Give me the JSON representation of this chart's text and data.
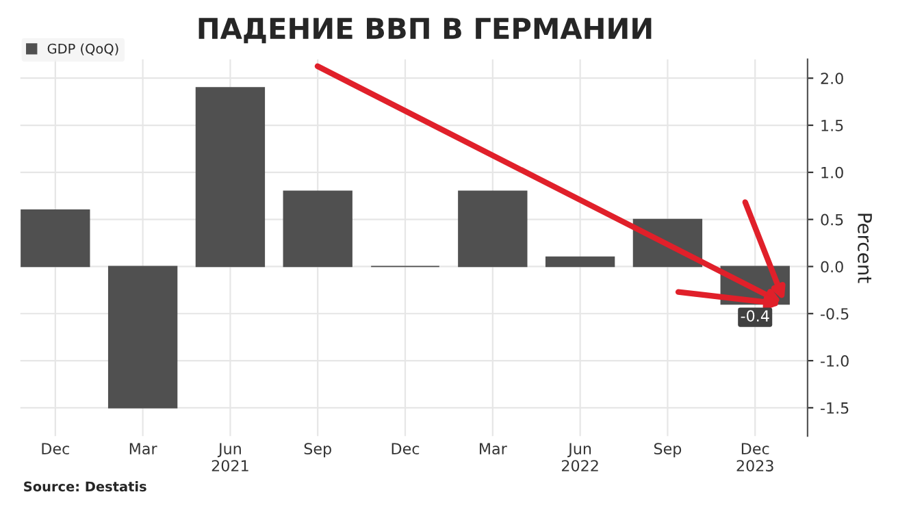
{
  "chart_data": {
    "type": "bar",
    "title": "ПАДЕНИЕ ВВП В ГЕРМАНИИ",
    "categories": [
      "Dec",
      "Mar",
      "Jun\n2021",
      "Sep",
      "Dec",
      "Mar",
      "Jun\n2022",
      "Sep",
      "Dec\n2023"
    ],
    "series": [
      {
        "name": "GDP (QoQ)",
        "color": "#505050",
        "values": [
          0.6,
          -1.5,
          1.9,
          0.8,
          0.0,
          0.8,
          0.1,
          0.5,
          -0.4
        ],
        "value_labels": [
          null,
          null,
          null,
          null,
          null,
          null,
          null,
          null,
          "-0.4"
        ]
      }
    ],
    "ylabel": "Percent",
    "ylim": [
      -1.8,
      2.2
    ],
    "yticks": [
      -1.5,
      {
        "value": -1,
        "label": "-1.0"
      },
      -0.5,
      {
        "value": 0,
        "label": "0.0"
      },
      0.5,
      {
        "value": 1,
        "label": "1.0"
      },
      1.5,
      {
        "value": 2,
        "label": "2.0"
      }
    ],
    "grid": true,
    "legend": "top left",
    "annotations": [
      "Source: Destatis"
    ]
  }
}
